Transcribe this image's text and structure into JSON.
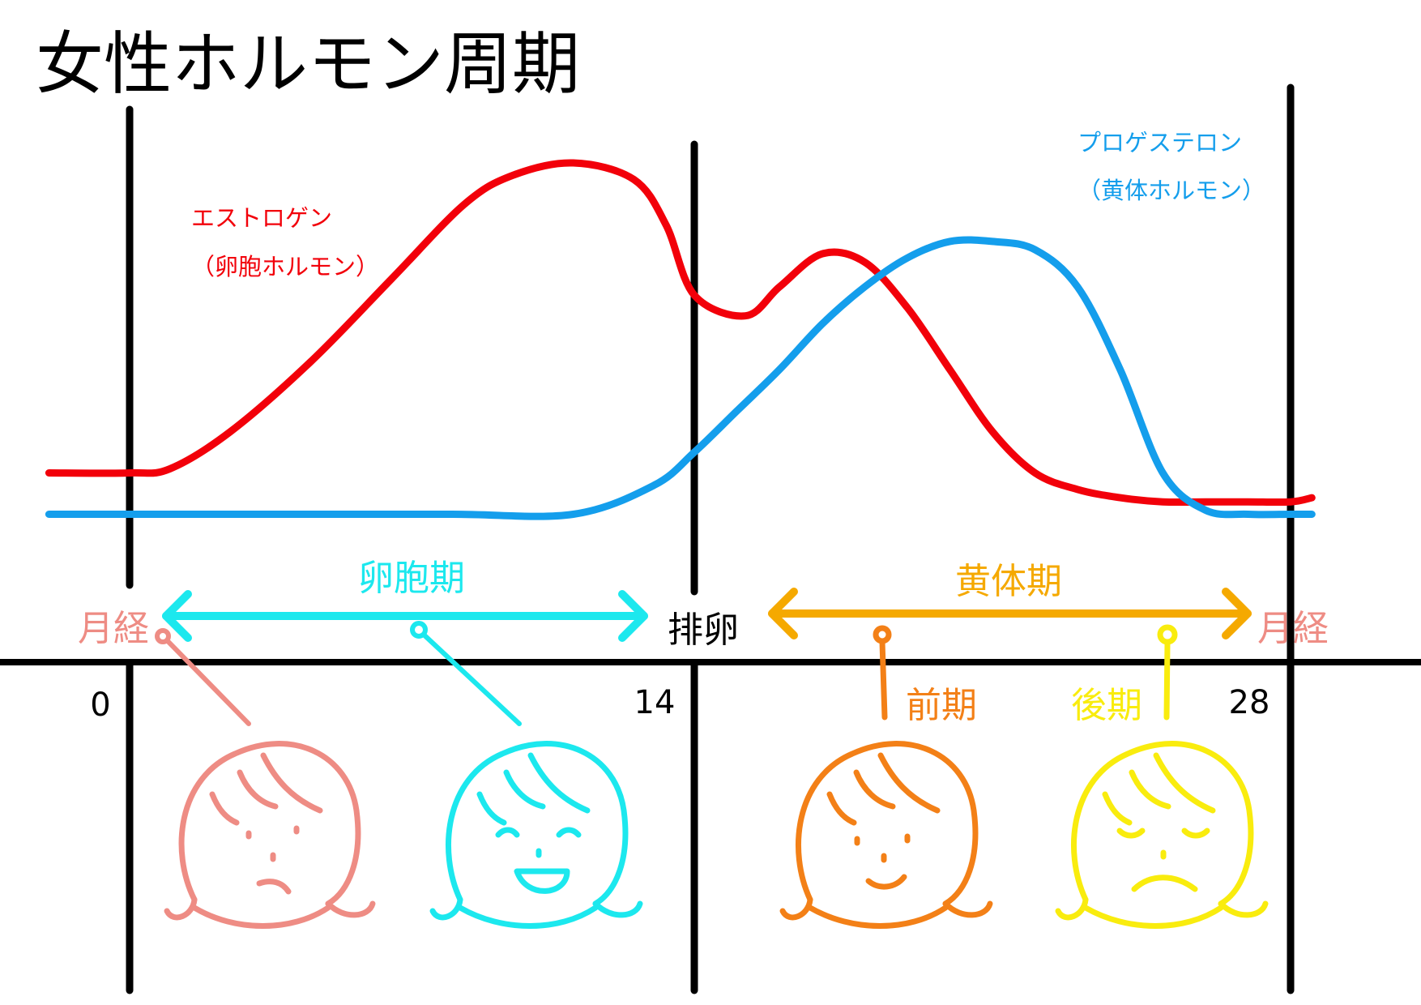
{
  "title": "女性ホルモン周期",
  "colors": {
    "estrogen": "#f2000a",
    "progesterone": "#149eec",
    "menses": "#ee8c84",
    "follicular": "#1ce8ee",
    "luteal": "#f5a900",
    "early": "#f38017",
    "late": "#f9ec0e",
    "axis": "#000000"
  },
  "hormones": {
    "estrogen": {
      "name": "エストロゲン",
      "subname": "（卵胞ホルモン）"
    },
    "progesterone": {
      "name": "プロゲステロン",
      "subname": "（黄体ホルモン）"
    }
  },
  "phases": {
    "follicular": "卵胞期",
    "ovulation": "排卵",
    "luteal": "黄体期",
    "menses_left": "月経",
    "menses_right": "月経",
    "early": "前期",
    "late": "後期"
  },
  "ticks": [
    "0",
    "14",
    "28"
  ],
  "faces": [
    {
      "mood": "tired"
    },
    {
      "mood": "happy"
    },
    {
      "mood": "calm"
    },
    {
      "mood": "down"
    }
  ],
  "chart_data": {
    "type": "line",
    "title": "女性ホルモン周期",
    "xlabel": "",
    "ylabel": "",
    "x_ticks": [
      0,
      14,
      28
    ],
    "xlim": [
      -2,
      29
    ],
    "ylim": [
      0,
      1
    ],
    "grid": false,
    "series": [
      {
        "name": "エストロゲン",
        "x": [
          -2,
          0,
          1,
          2.5,
          4.5,
          6.5,
          8.3,
          9.5,
          11,
          12.5,
          13.3,
          14,
          15.2,
          16,
          17,
          18,
          19,
          20,
          21,
          22,
          23,
          24,
          25,
          26,
          27,
          28,
          28.5
        ],
        "y": [
          0.15,
          0.15,
          0.16,
          0.25,
          0.42,
          0.62,
          0.8,
          0.87,
          0.9,
          0.86,
          0.75,
          0.58,
          0.53,
          0.6,
          0.68,
          0.66,
          0.55,
          0.4,
          0.25,
          0.15,
          0.11,
          0.09,
          0.08,
          0.08,
          0.08,
          0.08,
          0.09
        ]
      },
      {
        "name": "プロゲステロン",
        "x": [
          -2,
          0,
          4,
          8,
          11,
          13,
          14,
          15,
          16,
          17,
          18,
          19,
          20,
          21,
          22,
          23,
          24,
          25,
          26,
          27,
          28,
          28.5
        ],
        "y": [
          0.05,
          0.05,
          0.05,
          0.05,
          0.05,
          0.12,
          0.2,
          0.3,
          0.4,
          0.51,
          0.6,
          0.67,
          0.71,
          0.71,
          0.69,
          0.6,
          0.4,
          0.15,
          0.06,
          0.05,
          0.05,
          0.05
        ]
      }
    ]
  }
}
